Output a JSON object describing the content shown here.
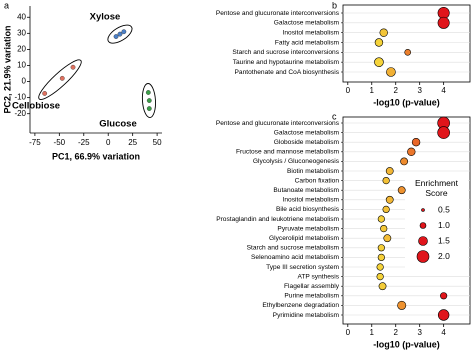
{
  "chart_data": [
    {
      "type": "scatter",
      "panel": "a",
      "x_label": "PC1, 66.9% variation",
      "y_label": "PC2, 21.9% variation",
      "xlim": [
        -80,
        55
      ],
      "ylim": [
        -32,
        47
      ],
      "xticks": [
        -75,
        -50,
        -25,
        0,
        25,
        50
      ],
      "yticks": [
        -20,
        -10,
        0,
        10,
        20,
        30,
        40
      ],
      "series": [
        {
          "name": "Xylose",
          "color": "#4a7fc8",
          "x": [
            8,
            12,
            16
          ],
          "y": [
            28,
            29.5,
            31
          ]
        },
        {
          "name": "Cellobiose",
          "color": "#e0705e",
          "x": [
            -65,
            -47,
            -36
          ],
          "y": [
            -7.4,
            2,
            8.9
          ]
        },
        {
          "name": "Glucose",
          "color": "#3a9f48",
          "x": [
            41,
            42,
            42
          ],
          "y": [
            -6.8,
            -11.8,
            -16.8
          ]
        }
      ]
    },
    {
      "type": "dot",
      "panel": "b",
      "x_label": "-log10 (p-value)",
      "xlim": [
        -0.2,
        5.1
      ],
      "xticks": [
        0,
        1,
        2,
        3,
        4
      ],
      "color_scale": [
        "#f5d33a",
        "#e0151b"
      ],
      "categories": [
        "Pentose and glucuronate interconversions",
        "Galactose metabolism",
        "Inositol metabolism",
        "Fatty acid metabolism",
        "Starch and sucrose interconversions",
        "Taurine and hypotaurine metabolism",
        "Pantothenate and CoA biosynthesis"
      ],
      "label_colors": [
        "#e0151b",
        "#e0151b",
        "#e0151b",
        "#e0151b",
        "#e0151b",
        "#1f3fbf",
        "#1f3fbf"
      ],
      "values": [
        4.0,
        4.0,
        1.5,
        1.3,
        2.5,
        1.3,
        1.8
      ],
      "sizes": [
        1.9,
        1.9,
        1.3,
        1.3,
        1.0,
        1.5,
        1.5
      ]
    },
    {
      "type": "dot",
      "panel": "c",
      "x_label": "-log10 (p-value)",
      "xlim": [
        -0.2,
        5.1
      ],
      "xticks": [
        0,
        1,
        2,
        3,
        4
      ],
      "color_scale": [
        "#f5d33a",
        "#e0151b"
      ],
      "categories": [
        "Pentose and glucuronate interconversions",
        "Galactose metabolism",
        "Globoside metabolism",
        "Fructose and mannose metabolism",
        "Glycolysis / Gluconeogenesis",
        "Biotin metabolism",
        "Carbon fixation",
        "Butanoate metabolism",
        "Inositol metabolism",
        "Bile acid biosynthesis",
        "Prostaglandin and leukotriene metabolism",
        "Pyruvate metabolism",
        "Glycerolipid metabolism",
        "Starch and sucrose metabolism",
        "Selenoamino acid metabolism",
        "Type III secretion system",
        "ATP synthesis",
        "Flagellar assembly",
        "Purine metabolism",
        "Ethylbenzene degradation",
        "Pyrimidine metabolism"
      ],
      "label_colors": [
        "#e0151b",
        "#e0151b",
        "#e0151b",
        "#e0151b",
        "#e0151b",
        "#e0151b",
        "#e0151b",
        "#e0151b",
        "#e0151b",
        "#e0151b",
        "#e0151b",
        "#e0151b",
        "#e0151b",
        "#e0151b",
        "#1f3fbf",
        "#1f3fbf",
        "#1f3fbf",
        "#1f3fbf",
        "#1f3fbf",
        "#1f3fbf",
        "#1f3fbf"
      ],
      "values": [
        4.0,
        4.0,
        2.85,
        2.65,
        2.35,
        1.75,
        1.6,
        2.25,
        1.75,
        1.6,
        1.4,
        1.5,
        1.65,
        1.4,
        1.4,
        1.35,
        1.35,
        1.45,
        4.0,
        2.25,
        4.0
      ],
      "sizes": [
        2.0,
        2.0,
        1.3,
        1.3,
        1.2,
        1.2,
        1.1,
        1.2,
        1.2,
        1.1,
        1.1,
        1.1,
        1.2,
        1.1,
        1.1,
        1.1,
        1.1,
        1.2,
        1.1,
        1.4,
        1.8
      ],
      "size_legend": {
        "title": "Enrichment Score",
        "color": "#e0151b",
        "values": [
          0.5,
          {
            "value": 1,
            "label": "1.0"
          },
          1.5,
          {
            "value": 2,
            "label": "2.0"
          }
        ]
      }
    }
  ]
}
